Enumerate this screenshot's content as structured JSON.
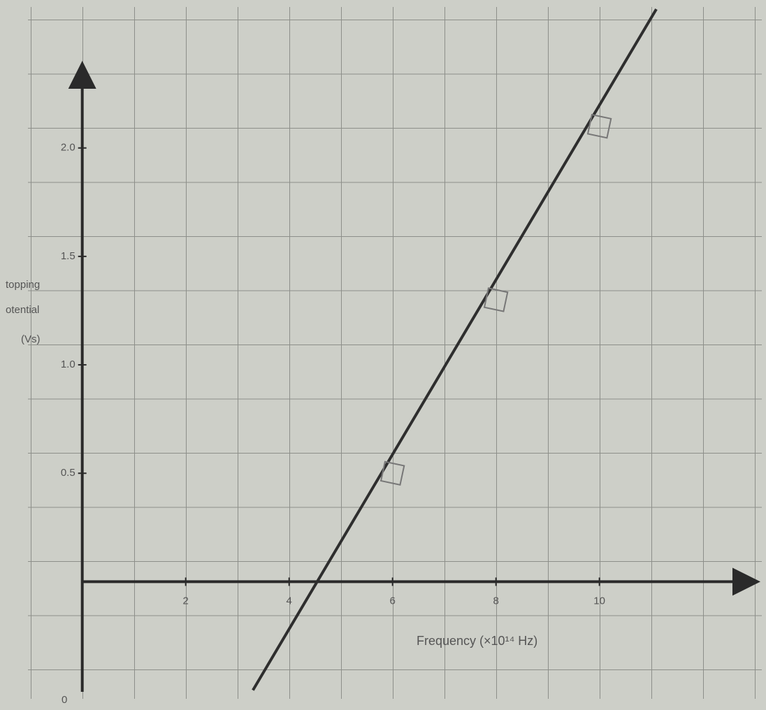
{
  "chart_data": {
    "type": "scatter",
    "x_label": "Frequency (×10¹⁴ Hz)",
    "y_label": [
      "topping",
      "otential",
      "(Vs)"
    ],
    "origin_label": "0",
    "x": [
      6,
      8,
      10
    ],
    "values": [
      0.5,
      1.3,
      2.1
    ],
    "fit_line": {
      "x": [
        3.3,
        11.1
      ],
      "values": [
        -0.5,
        2.64
      ]
    },
    "color": "#2e2e2e",
    "xlim": [
      -1.05,
      13.14
    ],
    "ylim": [
      -0.54,
      2.65
    ],
    "xticks": [
      2,
      4,
      6,
      8,
      10
    ],
    "yticks": [
      0.5,
      {
        "value": 1.0,
        "label": "1.0"
      },
      1.5,
      {
        "value": 2.0,
        "label": "2.0"
      }
    ]
  }
}
